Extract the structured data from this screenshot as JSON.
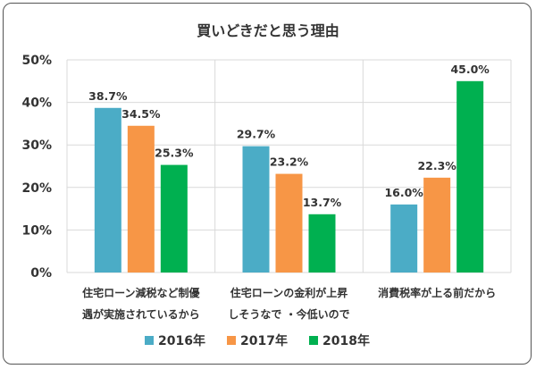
{
  "chart_data": {
    "type": "bar",
    "title": "買いどきだと思う理由",
    "categories": [
      [
        "住宅ローン減税など制優",
        "遇が実施されているから"
      ],
      [
        "住宅ローンの金利が上昇",
        "しそうなで ・今低いので"
      ],
      [
        "消費税率が上る前だから"
      ]
    ],
    "series": [
      {
        "name": "2016年",
        "values": [
          38.7,
          29.7,
          16.0
        ],
        "labels": [
          "38.7%",
          "29.7%",
          "16.0%"
        ],
        "color": "#4BACC6"
      },
      {
        "name": "2017年",
        "values": [
          34.5,
          23.2,
          22.3
        ],
        "labels": [
          "34.5%",
          "23.2%",
          "22.3%"
        ],
        "color": "#F79646"
      },
      {
        "name": "2018年",
        "values": [
          25.3,
          13.7,
          45.0
        ],
        "labels": [
          "25.3%",
          "13.7%",
          "45.0%"
        ],
        "color": "#00B050"
      }
    ],
    "y_ticks": [
      "0%",
      "10%",
      "20%",
      "30%",
      "40%",
      "50%"
    ],
    "ylim": [
      0,
      50
    ],
    "grid": true,
    "legend_position": "bottom"
  }
}
